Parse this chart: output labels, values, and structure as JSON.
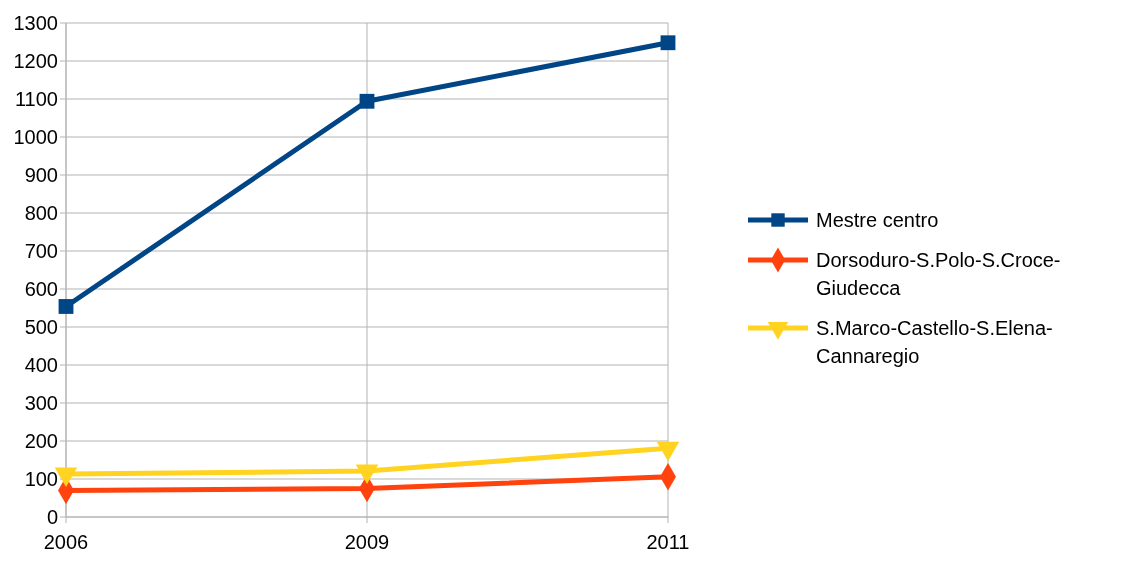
{
  "chart_data": {
    "type": "line",
    "categories": [
      "2006",
      "2009",
      "2011"
    ],
    "series": [
      {
        "name": "Mestre centro",
        "color": "#004586",
        "marker": "square",
        "values": [
          554,
          1094,
          1248
        ]
      },
      {
        "name": "Dorsoduro-S.Polo-S.Croce-Giudecca",
        "color": "#ff420e",
        "marker": "diamond",
        "values": [
          70,
          75,
          106
        ]
      },
      {
        "name": "S.Marco-Castello-S.Elena-Cannaregio",
        "color": "#ffd320",
        "marker": "triangle-down",
        "values": [
          113,
          121,
          181
        ]
      }
    ],
    "ylim": [
      0,
      1300
    ],
    "yticks": [
      0,
      100,
      200,
      300,
      400,
      500,
      600,
      700,
      800,
      900,
      1000,
      1100,
      1200,
      1300
    ],
    "grid": true,
    "legend": "right",
    "line_style": "solid"
  }
}
